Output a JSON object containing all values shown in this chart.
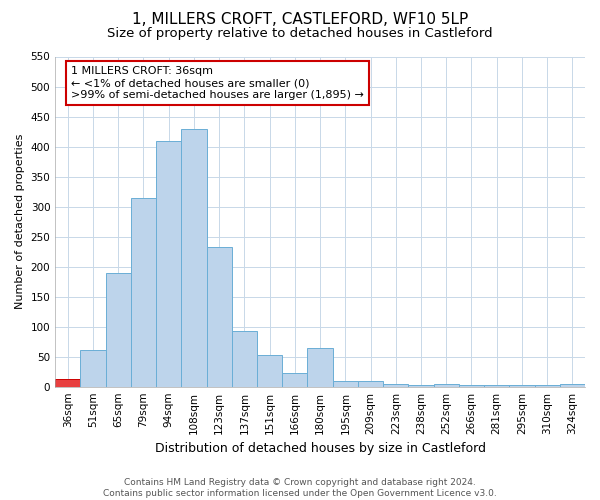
{
  "title": "1, MILLERS CROFT, CASTLEFORD, WF10 5LP",
  "subtitle": "Size of property relative to detached houses in Castleford",
  "xlabel": "Distribution of detached houses by size in Castleford",
  "ylabel": "Number of detached properties",
  "footer_line1": "Contains HM Land Registry data © Crown copyright and database right 2024.",
  "footer_line2": "Contains public sector information licensed under the Open Government Licence v3.0.",
  "categories": [
    "36sqm",
    "51sqm",
    "65sqm",
    "79sqm",
    "94sqm",
    "108sqm",
    "123sqm",
    "137sqm",
    "151sqm",
    "166sqm",
    "180sqm",
    "195sqm",
    "209sqm",
    "223sqm",
    "238sqm",
    "252sqm",
    "266sqm",
    "281sqm",
    "295sqm",
    "310sqm",
    "324sqm"
  ],
  "values": [
    12,
    61,
    190,
    315,
    409,
    430,
    232,
    93,
    53,
    23,
    65,
    10,
    9,
    5,
    3,
    4,
    2,
    2,
    2,
    2,
    4
  ],
  "bar_color": "#bdd4eb",
  "bar_edge_color": "#6aaed6",
  "highlight_bar_index": 0,
  "highlight_bar_color": "#e84040",
  "highlight_bar_edge_color": "#cc0000",
  "ylim": [
    0,
    550
  ],
  "yticks": [
    0,
    50,
    100,
    150,
    200,
    250,
    300,
    350,
    400,
    450,
    500,
    550
  ],
  "annotation_text": "1 MILLERS CROFT: 36sqm\n← <1% of detached houses are smaller (0)\n>99% of semi-detached houses are larger (1,895) →",
  "annotation_box_facecolor": "#ffffff",
  "annotation_box_edgecolor": "#cc0000",
  "bg_color": "#ffffff",
  "plot_bg_color": "#ffffff",
  "grid_color": "#c8d8e8",
  "title_fontsize": 11,
  "subtitle_fontsize": 9.5,
  "xlabel_fontsize": 9,
  "ylabel_fontsize": 8,
  "tick_fontsize": 7.5,
  "annotation_fontsize": 8,
  "footer_fontsize": 6.5
}
